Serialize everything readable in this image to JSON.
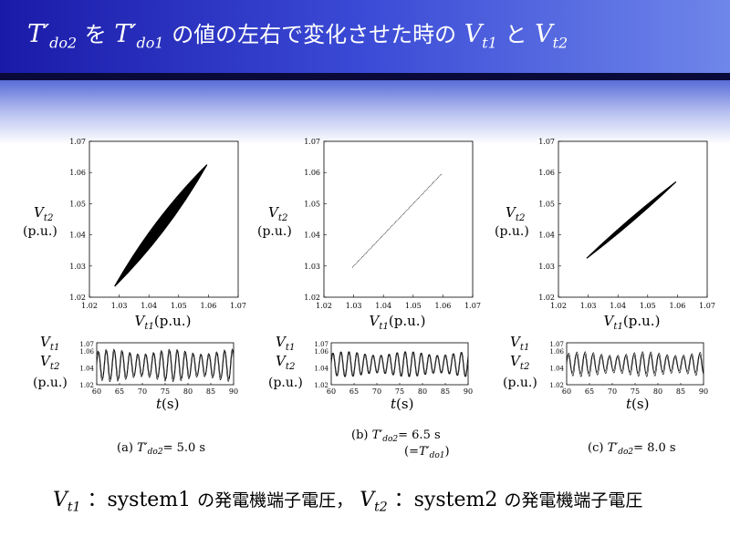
{
  "slide": {
    "title": {
      "var_a": "T′",
      "var_a_sub": "do2",
      "wo": "を",
      "var_b": "T′",
      "var_b_sub": "do1",
      "mid": "の値の左右で変化させた時の",
      "v1": "V",
      "v1_sub": "t1",
      "to": "と",
      "v2": "V",
      "v2_sub": "t2"
    },
    "footer": {
      "v1": "V",
      "v1_sub": "t1",
      "part1": "：system1",
      "jp1": "の発電機端子電圧，",
      "v2": "V",
      "v2_sub": "t2",
      "part2": "：system2",
      "jp2": "の発電機端子電圧"
    }
  },
  "chart_data": [
    {
      "type": "line",
      "kind": "phase",
      "xlabel_var": "V",
      "xlabel_sub": "t1",
      "xlabel_unit": "(p.u.)",
      "ylabel_var": "V",
      "ylabel_sub": "t2",
      "ylabel_unit": "(p.u.)",
      "xlim": [
        1.02,
        1.07
      ],
      "ylim": [
        1.02,
        1.07
      ],
      "xticks": [
        "1.02",
        "1.03",
        "1.04",
        "1.05",
        "1.06",
        "1.07"
      ],
      "yticks": [
        "1.02",
        "1.03",
        "1.04",
        "1.05",
        "1.06",
        "1.07"
      ],
      "x": [
        1.0285,
        1.0595
      ],
      "y": [
        1.0235,
        1.0625
      ],
      "spread": 0.0025
    },
    {
      "type": "line",
      "kind": "phase",
      "xlabel_var": "V",
      "xlabel_sub": "t1",
      "xlabel_unit": "(p.u.)",
      "ylabel_var": "V",
      "ylabel_sub": "t2",
      "ylabel_unit": "(p.u.)",
      "xlim": [
        1.02,
        1.07
      ],
      "ylim": [
        1.02,
        1.07
      ],
      "xticks": [
        "1.02",
        "1.03",
        "1.04",
        "1.05",
        "1.06",
        "1.07"
      ],
      "yticks": [
        "1.02",
        "1.03",
        "1.04",
        "1.05",
        "1.06",
        "1.07"
      ],
      "x": [
        1.0295,
        1.0595
      ],
      "y": [
        1.0295,
        1.0595
      ],
      "spread": 0
    },
    {
      "type": "line",
      "kind": "phase",
      "xlabel_var": "V",
      "xlabel_sub": "t1",
      "xlabel_unit": "(p.u.)",
      "ylabel_var": "V",
      "ylabel_sub": "t2",
      "ylabel_unit": "(p.u.)",
      "xlim": [
        1.02,
        1.07
      ],
      "ylim": [
        1.02,
        1.07
      ],
      "xticks": [
        "1.02",
        "1.03",
        "1.04",
        "1.05",
        "1.06",
        "1.07"
      ],
      "yticks": [
        "1.02",
        "1.03",
        "1.04",
        "1.05",
        "1.06",
        "1.07"
      ],
      "x": [
        1.0295,
        1.0595
      ],
      "y": [
        1.0325,
        1.057
      ],
      "spread": 0.0008
    },
    {
      "type": "line",
      "kind": "time",
      "ylabel1_var": "V",
      "ylabel1_sub": "t1",
      "ylabel2_var": "V",
      "ylabel2_sub": "t2",
      "ylabel_unit": "(p.u.)",
      "xlabel_var": "t",
      "xlabel_unit": "(s)",
      "xlim": [
        60,
        90
      ],
      "ylim": [
        1.02,
        1.07
      ],
      "xticks": [
        "60",
        "65",
        "70",
        "75",
        "80",
        "85",
        "90"
      ],
      "yticks": [
        "1.02",
        "1.04",
        "1.06"
      ],
      "ytick_top": "1.07",
      "period_s": 1.73,
      "series": [
        {
          "mean": 1.0435,
          "amp": 0.0175
        },
        {
          "mean": 1.043,
          "amp": 0.0195
        }
      ],
      "caption_prefix": "(a)",
      "caption_var": "T′",
      "caption_sub": "do2",
      "caption_val": "= 5.0 s"
    },
    {
      "type": "line",
      "kind": "time",
      "ylabel1_var": "V",
      "ylabel1_sub": "t1",
      "ylabel2_var": "V",
      "ylabel2_sub": "t2",
      "ylabel_unit": "(p.u.)",
      "xlabel_var": "t",
      "xlabel_unit": "(s)",
      "xlim": [
        60,
        90
      ],
      "ylim": [
        1.02,
        1.07
      ],
      "xticks": [
        "60",
        "65",
        "70",
        "75",
        "80",
        "85",
        "90"
      ],
      "yticks": [
        "1.02",
        "1.04",
        "1.06"
      ],
      "ytick_top": "1.07",
      "period_s": 1.76,
      "series": [
        {
          "mean": 1.0445,
          "amp": 0.015
        },
        {
          "mean": 1.0445,
          "amp": 0.015
        }
      ],
      "caption_prefix": "(b)",
      "caption_var": "T′",
      "caption_sub": "do2",
      "caption_val": "= 6.5 s",
      "caption2_open": "(=",
      "caption2_var": "T′",
      "caption2_sub": "do1",
      "caption2_close": ")"
    },
    {
      "type": "line",
      "kind": "time",
      "ylabel1_var": "V",
      "ylabel1_sub": "t1",
      "ylabel2_var": "V",
      "ylabel2_sub": "t2",
      "ylabel_unit": "(p.u.)",
      "xlabel_var": "t",
      "xlabel_unit": "(s)",
      "xlim": [
        60,
        90
      ],
      "ylim": [
        1.02,
        1.07
      ],
      "xticks": [
        "60",
        "65",
        "70",
        "75",
        "80",
        "85",
        "90"
      ],
      "yticks": [
        "1.02",
        "1.04",
        "1.06"
      ],
      "ytick_top": "1.07",
      "period_s": 1.8,
      "series": [
        {
          "mean": 1.0445,
          "amp": 0.015
        },
        {
          "mean": 1.045,
          "amp": 0.012
        }
      ],
      "caption_prefix": "(c)",
      "caption_var": "T′",
      "caption_sub": "do2",
      "caption_val": "= 8.0 s"
    }
  ]
}
